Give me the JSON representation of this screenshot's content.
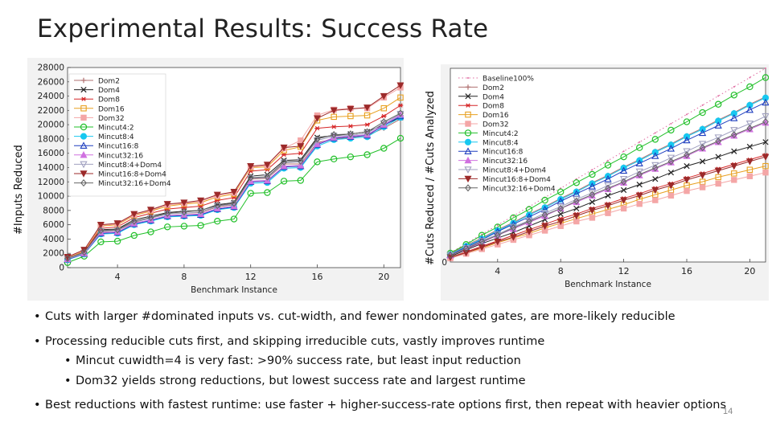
{
  "slide": {
    "title": "Experimental Results: Success Rate",
    "number": "14",
    "bullets": [
      {
        "text": "Cuts with larger #dominated inputs vs. cut-width, and fewer nondominated gates, are more-likely reducible"
      },
      {
        "text": "Processing reducible cuts first, and skipping irreducible cuts, vastly improves runtime"
      },
      {
        "text": "Mincut cuwidth=4 is very fast: >90% success rate, but least input reduction"
      },
      {
        "text": "Dom32 yields strong reductions, but lowest success rate and largest runtime"
      },
      {
        "text": "Best reductions with  fastest runtime:  use faster + higher-success-rate options first, then repeat with heavier options"
      }
    ]
  },
  "colors": {
    "Dom2": "#b07070",
    "Dom4": "#222222",
    "Dom8": "#d62728",
    "Dom16": "#e8a020",
    "Dom32": "#f4a6a6",
    "Mincut4:2": "#22c02a",
    "Mincut8:4": "#17c8f0",
    "Mincut16:8": "#1f3fbf",
    "Mincut32:16": "#d070e0",
    "Mincut8:4+Dom4": "#a0a0c0",
    "Mincut16:8+Dom4": "#9c2a2a",
    "Mincut32:16+Dom4": "#666666",
    "Baseline100%": "#e06aa0"
  },
  "chart_data": [
    {
      "type": "line",
      "title": "",
      "xlabel": "Benchmark Instance",
      "ylabel": "#Inputs Reduced",
      "xlim": [
        1,
        21
      ],
      "ylim": [
        0,
        28000
      ],
      "xticks": [
        4,
        8,
        12,
        16,
        20
      ],
      "yticks": [
        0,
        2000,
        4000,
        6000,
        8000,
        10000,
        12000,
        14000,
        16000,
        18000,
        20000,
        22000,
        24000,
        26000,
        28000
      ],
      "legend_position": "top-left",
      "x": [
        1,
        2,
        3,
        4,
        5,
        6,
        7,
        8,
        9,
        10,
        11,
        12,
        13,
        14,
        15,
        16,
        17,
        18,
        19,
        20,
        21
      ],
      "series": [
        {
          "name": "Dom2",
          "marker": "+",
          "values": [
            1100,
            2000,
            5000,
            5200,
            6300,
            7000,
            7500,
            7600,
            7700,
            8500,
            8800,
            12400,
            12500,
            14500,
            14500,
            17500,
            18000,
            18200,
            18500,
            19500,
            20800
          ]
        },
        {
          "name": "Dom4",
          "marker": "x",
          "values": [
            1200,
            2100,
            5300,
            5400,
            6700,
            7200,
            7700,
            7900,
            8000,
            8800,
            9100,
            12800,
            13000,
            15000,
            15100,
            18200,
            18500,
            18700,
            19000,
            20000,
            21000
          ]
        },
        {
          "name": "Dom8",
          "marker": "*",
          "values": [
            1300,
            2200,
            5500,
            5700,
            7000,
            7600,
            8200,
            8400,
            8600,
            9400,
            9800,
            13500,
            13700,
            15800,
            16000,
            19500,
            19700,
            19800,
            20000,
            21200,
            22700
          ]
        },
        {
          "name": "Dom16",
          "marker": "s",
          "values": [
            1400,
            2300,
            5800,
            6000,
            7300,
            7900,
            8600,
            8900,
            9100,
            9900,
            10300,
            14000,
            14100,
            16400,
            16900,
            20600,
            21100,
            21200,
            21300,
            22300,
            23800
          ]
        },
        {
          "name": "Dom32",
          "marker": "S",
          "values": [
            1450,
            2400,
            5900,
            6100,
            7400,
            8000,
            8800,
            9000,
            9300,
            10100,
            10500,
            14100,
            14300,
            16700,
            17800,
            21300,
            22100,
            22300,
            22300,
            23800,
            25200
          ]
        },
        {
          "name": "Mincut4:2",
          "marker": "o",
          "values": [
            700,
            1600,
            3600,
            3700,
            4500,
            5000,
            5700,
            5800,
            5900,
            6500,
            6800,
            10400,
            10500,
            12100,
            12200,
            14800,
            15200,
            15500,
            15800,
            16700,
            18100
          ]
        },
        {
          "name": "Mincut8:4",
          "marker": "O",
          "values": [
            1100,
            1900,
            4700,
            4800,
            6000,
            6500,
            7100,
            7200,
            7300,
            8100,
            8400,
            11800,
            11900,
            13900,
            14000,
            17000,
            17900,
            18100,
            18300,
            19700,
            21000
          ]
        },
        {
          "name": "Mincut16:8",
          "marker": "^",
          "values": [
            1150,
            1950,
            4800,
            4900,
            6100,
            6600,
            7200,
            7300,
            7400,
            8200,
            8500,
            12000,
            12100,
            14100,
            14200,
            17200,
            18100,
            18300,
            18500,
            19900,
            21200
          ]
        },
        {
          "name": "Mincut32:16",
          "marker": "^f",
          "values": [
            1200,
            2000,
            4900,
            5000,
            6200,
            6700,
            7300,
            7400,
            7500,
            8300,
            8600,
            12100,
            12200,
            14200,
            14300,
            17300,
            18200,
            18400,
            18600,
            20000,
            21400
          ]
        },
        {
          "name": "Mincut8:4+Dom4",
          "marker": "v",
          "values": [
            1250,
            2050,
            5100,
            5200,
            6400,
            6900,
            7500,
            7600,
            7800,
            8600,
            8900,
            12500,
            12600,
            14700,
            14800,
            17800,
            18400,
            18500,
            18800,
            20200,
            21500
          ]
        },
        {
          "name": "Mincut16:8+Dom4",
          "marker": "vf",
          "values": [
            1500,
            2500,
            6000,
            6200,
            7500,
            8100,
            8900,
            9100,
            9400,
            10200,
            10600,
            14200,
            14400,
            16800,
            17000,
            20900,
            22000,
            22200,
            22400,
            24000,
            25500
          ]
        },
        {
          "name": "Mincut32:16+Dom4",
          "marker": "d",
          "values": [
            1300,
            2150,
            5200,
            5300,
            6500,
            7000,
            7600,
            7800,
            8000,
            8700,
            9000,
            12600,
            12700,
            14800,
            14900,
            18000,
            18600,
            18700,
            19000,
            20400,
            21600
          ]
        }
      ]
    },
    {
      "type": "line",
      "title": "",
      "xlabel": "Benchmark Instance",
      "ylabel": "#Cuts Reduced / #Cuts Analyzed",
      "xlim": [
        1,
        21
      ],
      "ylim": [
        0,
        21
      ],
      "xticks": [
        4,
        8,
        12,
        16,
        20
      ],
      "legend_position": "top-left",
      "x": [
        1,
        2,
        3,
        4,
        5,
        6,
        7,
        8,
        9,
        10,
        11,
        12,
        13,
        14,
        15,
        16,
        17,
        18,
        19,
        20,
        21
      ],
      "series": [
        {
          "name": "Baseline100%",
          "marker": ".",
          "values": [
            1,
            2,
            3,
            4,
            5,
            6,
            7,
            8,
            9,
            10,
            11,
            12,
            13,
            14,
            15,
            16,
            17,
            18,
            19,
            20,
            21
          ]
        },
        {
          "name": "Dom2",
          "marker": "+",
          "values": [
            0.9,
            1.8,
            2.6,
            3.5,
            4.3,
            5.2,
            6.0,
            6.9,
            7.7,
            8.6,
            9.4,
            10.3,
            11.1,
            12.0,
            12.8,
            13.7,
            14.5,
            15.4,
            16.2,
            17.1,
            17.9
          ]
        },
        {
          "name": "Dom4",
          "marker": "x",
          "values": [
            0.6,
            1.3,
            2.0,
            2.6,
            3.2,
            3.9,
            4.6,
            5.2,
            5.8,
            6.5,
            7.2,
            7.8,
            8.4,
            9.0,
            9.7,
            10.4,
            10.9,
            11.4,
            12.0,
            12.5,
            13.0
          ]
        },
        {
          "name": "Dom8",
          "marker": "*",
          "values": [
            0.5,
            1.1,
            1.7,
            2.3,
            2.9,
            3.5,
            4.1,
            4.7,
            5.2,
            5.8,
            6.3,
            6.9,
            7.4,
            8.0,
            8.5,
            9.1,
            9.6,
            10.1,
            10.6,
            11.1,
            11.6
          ]
        },
        {
          "name": "Dom16",
          "marker": "s",
          "values": [
            0.5,
            1.0,
            1.5,
            2.1,
            2.6,
            3.1,
            3.7,
            4.2,
            4.7,
            5.2,
            5.7,
            6.2,
            6.8,
            7.3,
            7.8,
            8.3,
            8.7,
            9.2,
            9.6,
            10.0,
            10.4
          ]
        },
        {
          "name": "Dom32",
          "marker": "S",
          "values": [
            0.4,
            0.9,
            1.4,
            1.9,
            2.4,
            2.9,
            3.4,
            3.9,
            4.4,
            4.8,
            5.3,
            5.8,
            6.3,
            6.7,
            7.2,
            7.7,
            8.1,
            8.5,
            8.9,
            9.3,
            9.7
          ]
        },
        {
          "name": "Mincut4:2",
          "marker": "o",
          "values": [
            0.96,
            1.9,
            2.9,
            3.8,
            4.8,
            5.7,
            6.7,
            7.6,
            8.6,
            9.5,
            10.5,
            11.4,
            12.4,
            13.3,
            14.3,
            15.2,
            16.2,
            17.1,
            18.1,
            19.0,
            20.0
          ]
        },
        {
          "name": "Mincut8:4",
          "marker": "O",
          "values": [
            0.8,
            1.7,
            2.5,
            3.4,
            4.2,
            5.1,
            5.9,
            6.8,
            7.6,
            8.5,
            9.3,
            10.2,
            11.0,
            11.9,
            12.7,
            13.6,
            14.4,
            15.3,
            16.1,
            17.0,
            17.8
          ]
        },
        {
          "name": "Mincut16:8",
          "marker": "^",
          "values": [
            0.78,
            1.6,
            2.4,
            3.3,
            4.1,
            4.9,
            5.7,
            6.6,
            7.4,
            8.2,
            9.0,
            9.9,
            10.7,
            11.5,
            12.3,
            13.2,
            14.0,
            14.8,
            15.6,
            16.5,
            17.3
          ]
        },
        {
          "name": "Mincut32:16",
          "marker": "^f",
          "values": [
            0.7,
            1.4,
            2.1,
            2.9,
            3.6,
            4.3,
            5.0,
            5.8,
            6.5,
            7.2,
            7.9,
            8.6,
            9.4,
            10.1,
            10.8,
            11.5,
            12.3,
            13.0,
            13.7,
            14.4,
            15.1
          ]
        },
        {
          "name": "Mincut8:4+Dom4",
          "marker": "v",
          "values": [
            0.75,
            1.5,
            2.3,
            3.0,
            3.8,
            4.5,
            5.3,
            6.0,
            6.8,
            7.5,
            8.3,
            9.0,
            9.8,
            10.5,
            11.3,
            12.0,
            12.8,
            13.5,
            14.3,
            15.0,
            15.8
          ]
        },
        {
          "name": "Mincut16:8+Dom4",
          "marker": "vf",
          "values": [
            0.5,
            1.0,
            1.6,
            2.2,
            2.7,
            3.3,
            3.9,
            4.4,
            5.0,
            5.6,
            6.1,
            6.7,
            7.2,
            7.8,
            8.3,
            8.9,
            9.4,
            9.9,
            10.4,
            10.9,
            11.4
          ]
        },
        {
          "name": "Mincut32:16+Dom4",
          "marker": "d",
          "values": [
            0.72,
            1.45,
            2.2,
            2.9,
            3.7,
            4.4,
            5.1,
            5.8,
            6.6,
            7.3,
            8.0,
            8.7,
            9.5,
            10.2,
            10.9,
            11.6,
            12.4,
            13.1,
            13.8,
            14.5,
            15.2
          ]
        }
      ]
    }
  ]
}
